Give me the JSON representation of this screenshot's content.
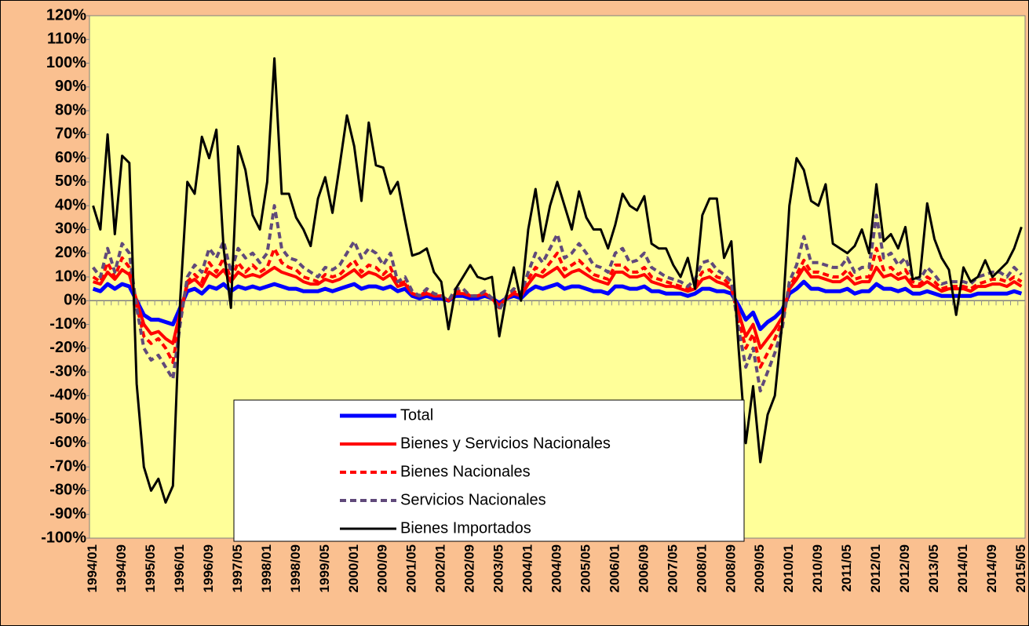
{
  "chart_data": {
    "type": "line",
    "categories": [
      "1994/01",
      null,
      null,
      null,
      "1994/09",
      null,
      null,
      null,
      "1995/05",
      null,
      null,
      null,
      "1996/01",
      null,
      null,
      null,
      "1996/09",
      null,
      null,
      null,
      "1997/05",
      null,
      null,
      null,
      "1998/01",
      null,
      null,
      null,
      "1998/09",
      null,
      null,
      null,
      "1999/05",
      null,
      null,
      null,
      "2000/01",
      null,
      null,
      null,
      "2000/09",
      null,
      null,
      null,
      "2001/05",
      null,
      null,
      null,
      "2002/01",
      null,
      null,
      null,
      "2002/09",
      null,
      null,
      null,
      "2003/05",
      null,
      null,
      null,
      "2004/01",
      null,
      null,
      null,
      "2004/09",
      null,
      null,
      null,
      "2005/05",
      null,
      null,
      null,
      "2006/01",
      null,
      null,
      null,
      "2006/09",
      null,
      null,
      null,
      "2007/05",
      null,
      null,
      null,
      "2008/01",
      null,
      null,
      null,
      "2008/09",
      null,
      null,
      null,
      "2009/05",
      null,
      null,
      null,
      "2010/01",
      null,
      null,
      null,
      "2010/09",
      null,
      null,
      null,
      "2011/05",
      null,
      null,
      null,
      "2012/01",
      null,
      null,
      null,
      "2012/09",
      null,
      null,
      null,
      "2013/05",
      null,
      null,
      null,
      "2014/01",
      null,
      null,
      null,
      "2014/09",
      null,
      null,
      null,
      "2015/05"
    ],
    "series": [
      {
        "name": "Total",
        "color": "#0000ff",
        "dashed": false,
        "width": 5,
        "values": [
          5,
          4,
          7,
          5,
          7,
          6,
          0,
          -6,
          -8,
          -8,
          -9,
          -10,
          -3,
          4,
          5,
          3,
          6,
          5,
          7,
          4,
          6,
          5,
          6,
          5,
          6,
          7,
          6,
          5,
          5,
          4,
          4,
          4,
          5,
          4,
          5,
          6,
          7,
          5,
          6,
          6,
          5,
          6,
          4,
          5,
          2,
          1,
          2,
          1,
          1,
          0,
          2,
          2,
          1,
          1,
          2,
          1,
          -1,
          1,
          2,
          1,
          4,
          6,
          5,
          6,
          7,
          5,
          6,
          6,
          5,
          4,
          4,
          3,
          6,
          6,
          5,
          5,
          6,
          4,
          4,
          3,
          3,
          3,
          2,
          3,
          5,
          5,
          4,
          4,
          3,
          -2,
          -8,
          -5,
          -12,
          -9,
          -7,
          -4,
          3,
          5,
          8,
          5,
          5,
          4,
          4,
          4,
          5,
          3,
          4,
          4,
          7,
          5,
          5,
          4,
          5,
          3,
          3,
          4,
          3,
          2,
          2,
          2,
          2,
          2,
          3,
          3,
          3,
          3,
          3,
          4,
          3
        ]
      },
      {
        "name": "Bienes y Servicios Nacionales",
        "color": "#ff0000",
        "dashed": false,
        "width": 4,
        "values": [
          8,
          7,
          12,
          9,
          13,
          11,
          0,
          -10,
          -14,
          -13,
          -16,
          -18,
          -5,
          7,
          9,
          6,
          12,
          10,
          13,
          8,
          12,
          10,
          11,
          10,
          12,
          14,
          12,
          11,
          10,
          8,
          7,
          7,
          9,
          8,
          9,
          11,
          13,
          10,
          12,
          11,
          9,
          11,
          6,
          7,
          3,
          2,
          3,
          2,
          2,
          0,
          3,
          3,
          2,
          2,
          3,
          1,
          -2,
          1,
          3,
          2,
          7,
          11,
          10,
          12,
          14,
          10,
          12,
          13,
          11,
          9,
          8,
          7,
          12,
          12,
          10,
          10,
          11,
          8,
          7,
          6,
          6,
          5,
          4,
          5,
          9,
          10,
          8,
          7,
          5,
          -5,
          -15,
          -10,
          -20,
          -16,
          -12,
          -7,
          5,
          9,
          14,
          10,
          10,
          9,
          8,
          8,
          10,
          7,
          8,
          8,
          14,
          10,
          11,
          9,
          10,
          6,
          6,
          8,
          6,
          4,
          5,
          5,
          5,
          4,
          6,
          6,
          7,
          7,
          6,
          8,
          6
        ]
      },
      {
        "name": "Bienes Nacionales",
        "color": "#ff0000",
        "dashed": true,
        "width": 4,
        "values": [
          10,
          8,
          16,
          10,
          18,
          14,
          -2,
          -15,
          -18,
          -16,
          -20,
          -26,
          -7,
          8,
          11,
          8,
          16,
          12,
          18,
          9,
          16,
          12,
          15,
          12,
          14,
          22,
          16,
          14,
          13,
          10,
          9,
          8,
          11,
          10,
          11,
          14,
          17,
          12,
          15,
          14,
          11,
          14,
          7,
          8,
          3,
          2,
          4,
          2,
          2,
          0,
          4,
          4,
          2,
          2,
          3,
          1,
          -3,
          1,
          4,
          2,
          9,
          14,
          12,
          16,
          20,
          13,
          15,
          17,
          14,
          11,
          10,
          9,
          15,
          15,
          12,
          12,
          14,
          10,
          9,
          8,
          7,
          6,
          5,
          7,
          12,
          13,
          10,
          9,
          6,
          -8,
          -20,
          -14,
          -28,
          -22,
          -16,
          -9,
          6,
          11,
          17,
          12,
          12,
          11,
          10,
          10,
          13,
          9,
          10,
          10,
          22,
          13,
          14,
          11,
          13,
          8,
          7,
          10,
          8,
          5,
          6,
          6,
          6,
          5,
          7,
          8,
          9,
          9,
          8,
          10,
          8
        ]
      },
      {
        "name": "Servicios Nacionales",
        "color": "#60497a",
        "dashed": true,
        "width": 4,
        "values": [
          14,
          10,
          22,
          12,
          24,
          20,
          -3,
          -20,
          -25,
          -23,
          -28,
          -33,
          -10,
          10,
          15,
          12,
          22,
          18,
          25,
          12,
          22,
          18,
          20,
          16,
          20,
          40,
          22,
          18,
          17,
          14,
          12,
          10,
          14,
          13,
          15,
          20,
          25,
          18,
          22,
          20,
          15,
          20,
          8,
          10,
          4,
          2,
          5,
          3,
          2,
          0,
          5,
          5,
          2,
          2,
          4,
          1,
          -4,
          2,
          5,
          3,
          12,
          20,
          16,
          22,
          28,
          18,
          20,
          24,
          20,
          15,
          14,
          12,
          20,
          22,
          16,
          17,
          20,
          14,
          12,
          10,
          9,
          8,
          6,
          9,
          16,
          17,
          13,
          11,
          8,
          -12,
          -28,
          -20,
          -38,
          -30,
          -22,
          -12,
          8,
          15,
          27,
          16,
          16,
          15,
          14,
          14,
          18,
          12,
          14,
          14,
          36,
          18,
          20,
          15,
          18,
          10,
          9,
          14,
          11,
          7,
          8,
          8,
          8,
          7,
          10,
          11,
          12,
          12,
          10,
          14,
          11
        ]
      },
      {
        "name": "Bienes Importados",
        "color": "#000000",
        "dashed": false,
        "width": 3,
        "values": [
          40,
          30,
          70,
          28,
          61,
          58,
          -35,
          -70,
          -80,
          -75,
          -85,
          -78,
          0,
          50,
          45,
          69,
          60,
          72,
          22,
          -3,
          65,
          55,
          36,
          30,
          50,
          102,
          45,
          45,
          35,
          30,
          23,
          43,
          52,
          37,
          57,
          78,
          65,
          42,
          75,
          57,
          56,
          45,
          50,
          34,
          19,
          20,
          22,
          12,
          8,
          -12,
          5,
          10,
          15,
          10,
          9,
          10,
          -15,
          2,
          14,
          0,
          30,
          47,
          25,
          40,
          50,
          40,
          30,
          46,
          35,
          30,
          30,
          22,
          32,
          45,
          40,
          38,
          44,
          24,
          22,
          22,
          15,
          10,
          18,
          5,
          36,
          43,
          43,
          18,
          25,
          -20,
          -60,
          -36,
          -68,
          -48,
          -40,
          -10,
          40,
          60,
          55,
          42,
          40,
          49,
          24,
          22,
          20,
          23,
          30,
          20,
          49,
          25,
          28,
          22,
          31,
          9,
          10,
          41,
          26,
          18,
          13,
          -6,
          14,
          8,
          10,
          17,
          10,
          13,
          16,
          22,
          31
        ]
      }
    ],
    "ylim": [
      -100,
      120
    ],
    "yticks": [
      {
        "value": -100,
        "label": "-100%"
      },
      {
        "value": -90,
        "label": "-90%"
      },
      {
        "value": -80,
        "label": "-80%"
      },
      {
        "value": -70,
        "label": "-70%"
      },
      {
        "value": -60,
        "label": "-60%"
      },
      {
        "value": -50,
        "label": "-50%"
      },
      {
        "value": -40,
        "label": "-40%"
      },
      {
        "value": -30,
        "label": "-30%"
      },
      {
        "value": -20,
        "label": "-20%"
      },
      {
        "value": -10,
        "label": "-10%"
      },
      {
        "value": 0,
        "label": "0%"
      },
      {
        "value": 10,
        "label": "10%"
      },
      {
        "value": 20,
        "label": "20%"
      },
      {
        "value": 30,
        "label": "30%"
      },
      {
        "value": 40,
        "label": "40%"
      },
      {
        "value": 50,
        "label": "50%"
      },
      {
        "value": 60,
        "label": "60%"
      },
      {
        "value": 70,
        "label": "70%"
      },
      {
        "value": 80,
        "label": "80%"
      },
      {
        "value": 90,
        "label": "90%"
      },
      {
        "value": 100,
        "label": "100%"
      },
      {
        "value": 110,
        "label": "110%"
      },
      {
        "value": 120,
        "label": "120%"
      }
    ],
    "grid": false,
    "plot_color": "#ffff99"
  }
}
